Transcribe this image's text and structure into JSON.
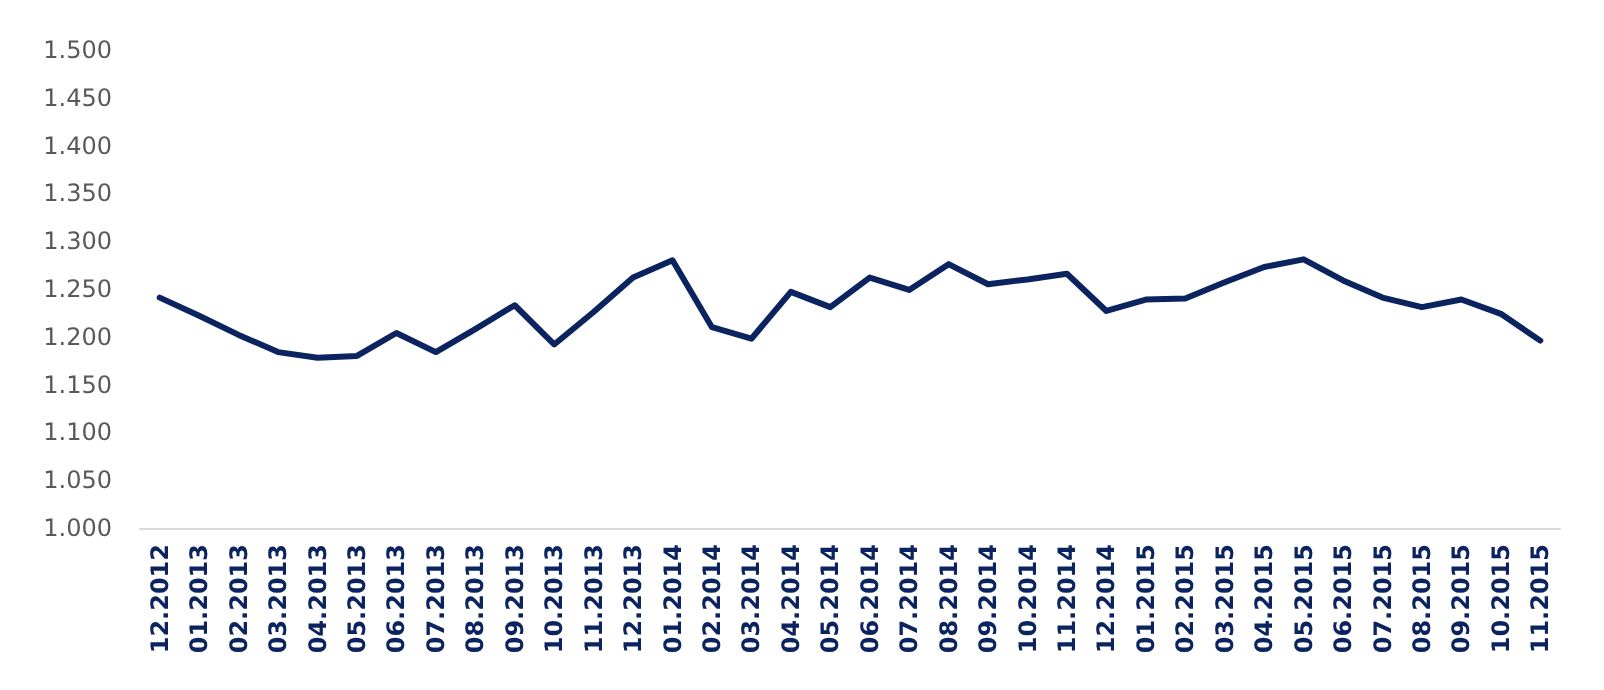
{
  "chart_data": {
    "type": "line",
    "categories": [
      "12.2012",
      "01.2013",
      "02.2013",
      "03.2013",
      "04.2013",
      "05.2013",
      "06.2013",
      "07.2013",
      "08.2013",
      "09.2013",
      "10.2013",
      "11.2013",
      "12.2013",
      "01.2014",
      "02.2014",
      "03.2014",
      "04.2014",
      "05.2014",
      "06.2014",
      "07.2014",
      "08.2014",
      "09.2014",
      "10.2014",
      "11.2014",
      "12.2014",
      "01.2015",
      "02.2015",
      "03.2015",
      "04.2015",
      "05.2015",
      "06.2015",
      "07.2015",
      "08.2015",
      "09.2015",
      "10.2015",
      "11.2015"
    ],
    "series": [
      {
        "color": "#0b2460",
        "values": [
          1.241,
          1.222,
          1.202,
          1.184,
          1.178,
          1.18,
          1.204,
          1.184,
          1.208,
          1.233,
          1.192,
          1.226,
          1.262,
          1.28,
          1.21,
          1.198,
          1.247,
          1.231,
          1.262,
          1.249,
          1.276,
          1.255,
          1.26,
          1.266,
          1.227,
          1.239,
          1.24,
          1.257,
          1.273,
          1.281,
          1.259,
          1.241,
          1.231,
          1.239,
          1.224,
          1.196
        ]
      }
    ],
    "ylim": [
      1.0,
      1.5
    ],
    "yticks": [
      {
        "value": 1.0,
        "label": "1.000"
      },
      {
        "value": 1.05,
        "label": "1.050"
      },
      {
        "value": 1.1,
        "label": "1.100"
      },
      {
        "value": 1.15,
        "label": "1.150"
      },
      {
        "value": 1.2,
        "label": "1.200"
      },
      {
        "value": 1.25,
        "label": "1.250"
      },
      {
        "value": 1.3,
        "label": "1.300"
      },
      {
        "value": 1.35,
        "label": "1.350"
      },
      {
        "value": 1.4,
        "label": "1.400"
      },
      {
        "value": 1.45,
        "label": "1.450"
      },
      {
        "value": 1.5,
        "label": "1.500"
      }
    ],
    "grid": false,
    "marker": "none",
    "line_style": "solid"
  }
}
